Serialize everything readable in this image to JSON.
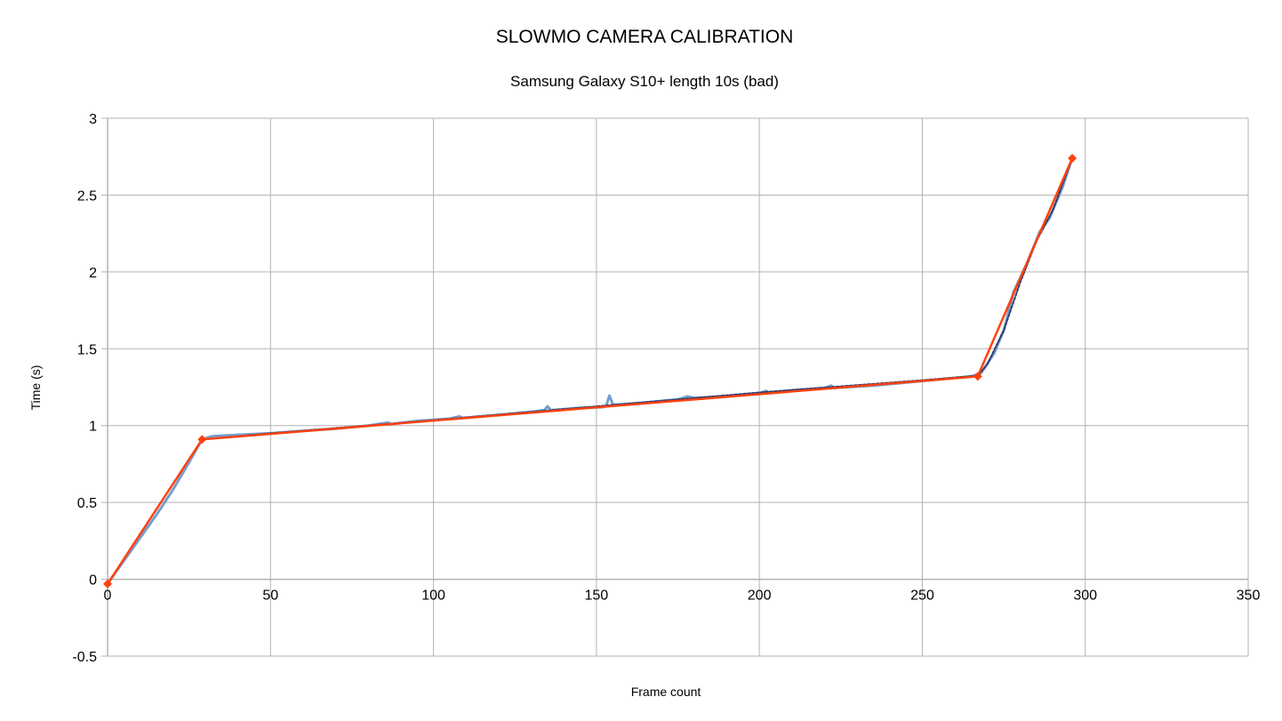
{
  "chart_data": {
    "type": "line",
    "title": "SLOWMO CAMERA CALIBRATION",
    "subtitle": "Samsung Galaxy S10+ length 10s (bad)",
    "xlabel": "Frame count",
    "ylabel": "Time (s)",
    "xlim": [
      0,
      350
    ],
    "ylim": [
      -0.5,
      3
    ],
    "x_ticks": [
      "0",
      "50",
      "100",
      "150",
      "200",
      "250",
      "300",
      "350"
    ],
    "y_ticks": [
      "-0.5",
      "0",
      "0.5",
      "1",
      "1.5",
      "2",
      "2.5",
      "3"
    ],
    "grid": true,
    "legend": "none",
    "series": [
      {
        "color": "#729fcf",
        "style": "measured",
        "points": [
          [
            0,
            -0.03
          ],
          [
            5,
            0.12
          ],
          [
            10,
            0.27
          ],
          [
            15,
            0.42
          ],
          [
            20,
            0.58
          ],
          [
            25,
            0.76
          ],
          [
            29,
            0.91
          ],
          [
            32,
            0.93
          ],
          [
            36,
            0.935
          ],
          [
            40,
            0.94
          ],
          [
            50,
            0.95
          ],
          [
            60,
            0.965
          ],
          [
            70,
            0.98
          ],
          [
            80,
            1.0
          ],
          [
            86,
            1.02
          ],
          [
            87,
            1.01
          ],
          [
            95,
            1.03
          ],
          [
            105,
            1.045
          ],
          [
            108,
            1.06
          ],
          [
            109,
            1.05
          ],
          [
            120,
            1.07
          ],
          [
            130,
            1.09
          ],
          [
            134,
            1.1
          ],
          [
            135,
            1.125
          ],
          [
            136,
            1.1
          ],
          [
            145,
            1.115
          ],
          [
            152,
            1.12
          ],
          [
            153,
            1.13
          ],
          [
            154,
            1.195
          ],
          [
            155,
            1.14
          ],
          [
            156,
            1.135
          ],
          [
            165,
            1.15
          ],
          [
            175,
            1.17
          ],
          [
            178,
            1.19
          ],
          [
            180,
            1.18
          ],
          [
            190,
            1.19
          ],
          [
            200,
            1.21
          ],
          [
            202,
            1.225
          ],
          [
            203,
            1.215
          ],
          [
            210,
            1.23
          ],
          [
            220,
            1.245
          ],
          [
            222,
            1.26
          ],
          [
            223,
            1.245
          ],
          [
            235,
            1.26
          ],
          [
            245,
            1.28
          ],
          [
            255,
            1.3
          ],
          [
            265,
            1.32
          ],
          [
            268,
            1.34
          ],
          [
            272,
            1.47
          ],
          [
            275,
            1.62
          ],
          [
            278,
            1.87
          ],
          [
            282,
            2.05
          ],
          [
            286,
            2.26
          ],
          [
            289,
            2.35
          ],
          [
            293,
            2.55
          ],
          [
            296,
            2.74
          ]
        ]
      },
      {
        "color": "#2e3a6b",
        "style": "dashed",
        "points": [
          [
            0,
            -0.03
          ],
          [
            29,
            0.91
          ],
          [
            50,
            0.95
          ],
          [
            100,
            1.035
          ],
          [
            150,
            1.125
          ],
          [
            200,
            1.215
          ],
          [
            250,
            1.295
          ],
          [
            267,
            1.325
          ],
          [
            270,
            1.4
          ],
          [
            275,
            1.62
          ],
          [
            280,
            1.93
          ],
          [
            285,
            2.2
          ],
          [
            290,
            2.4
          ],
          [
            296,
            2.74
          ]
        ]
      },
      {
        "color": "#ff420e",
        "style": "fit",
        "points": [
          [
            0,
            -0.03
          ],
          [
            29,
            0.91
          ],
          [
            267,
            1.32
          ],
          [
            296,
            2.74
          ]
        ]
      }
    ]
  }
}
